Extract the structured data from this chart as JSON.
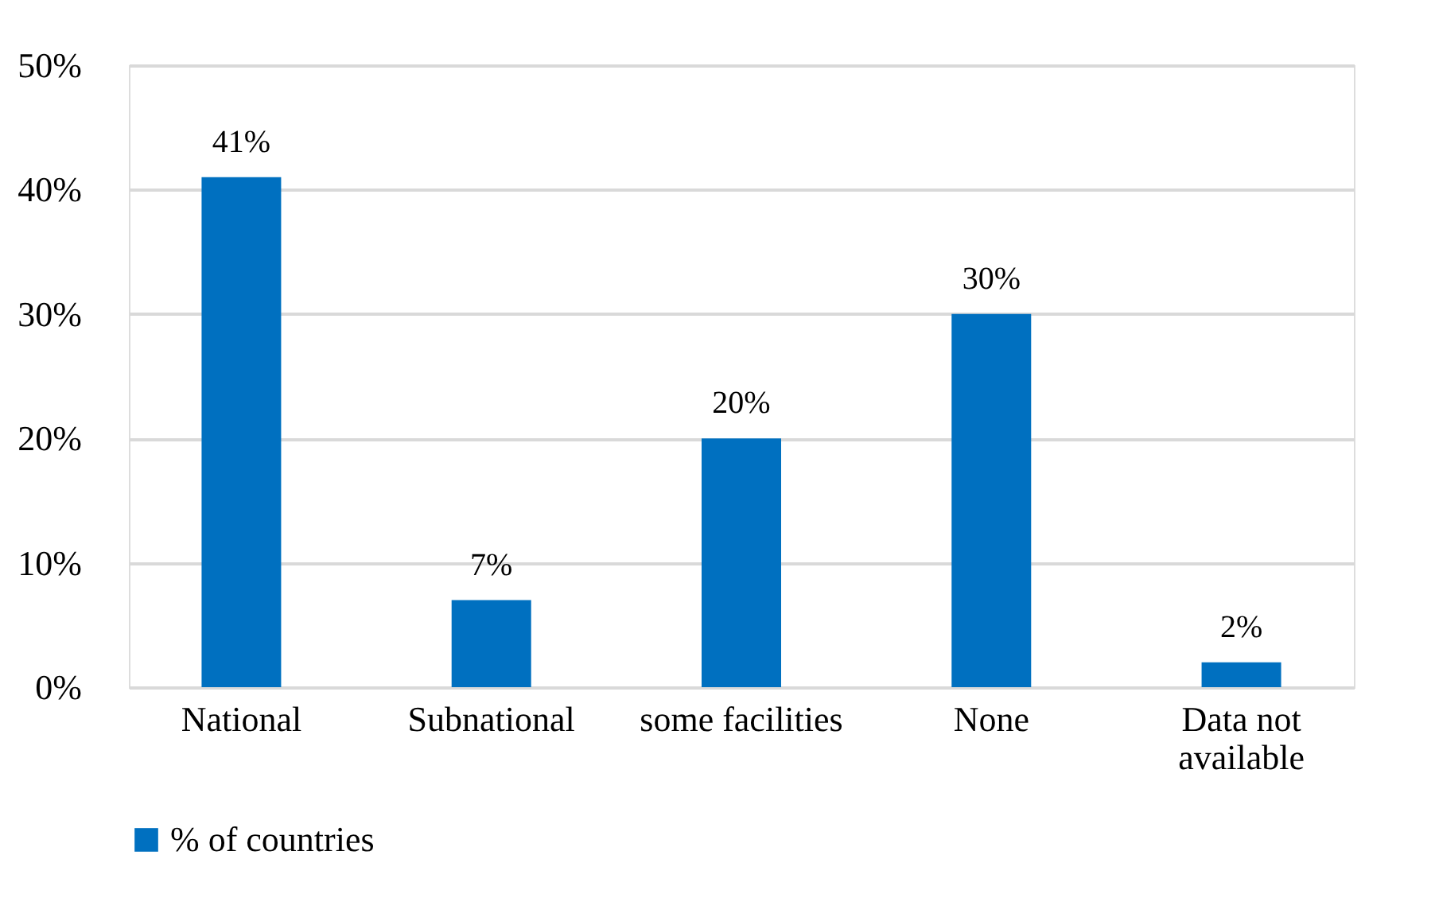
{
  "chart_data": {
    "type": "bar",
    "categories": [
      "National",
      "Subnational",
      "some facilities",
      "None",
      "Data not available"
    ],
    "series": [
      {
        "name": "% of countries",
        "color": "#0070c0",
        "values": [
          41,
          7,
          20,
          30,
          2
        ],
        "value_labels": [
          "41%",
          "7%",
          "20%",
          "30%",
          "2%"
        ]
      }
    ],
    "ylim": [
      0,
      50
    ],
    "yticks": [
      {
        "value": 0,
        "label": "0%"
      },
      {
        "value": 10,
        "label": "10%"
      },
      {
        "value": 20,
        "label": "20%"
      },
      {
        "value": 30,
        "label": "30%"
      },
      {
        "value": 40,
        "label": "40%"
      },
      {
        "value": 50,
        "label": "50%"
      }
    ],
    "grid": "y",
    "legend": "bottom"
  }
}
